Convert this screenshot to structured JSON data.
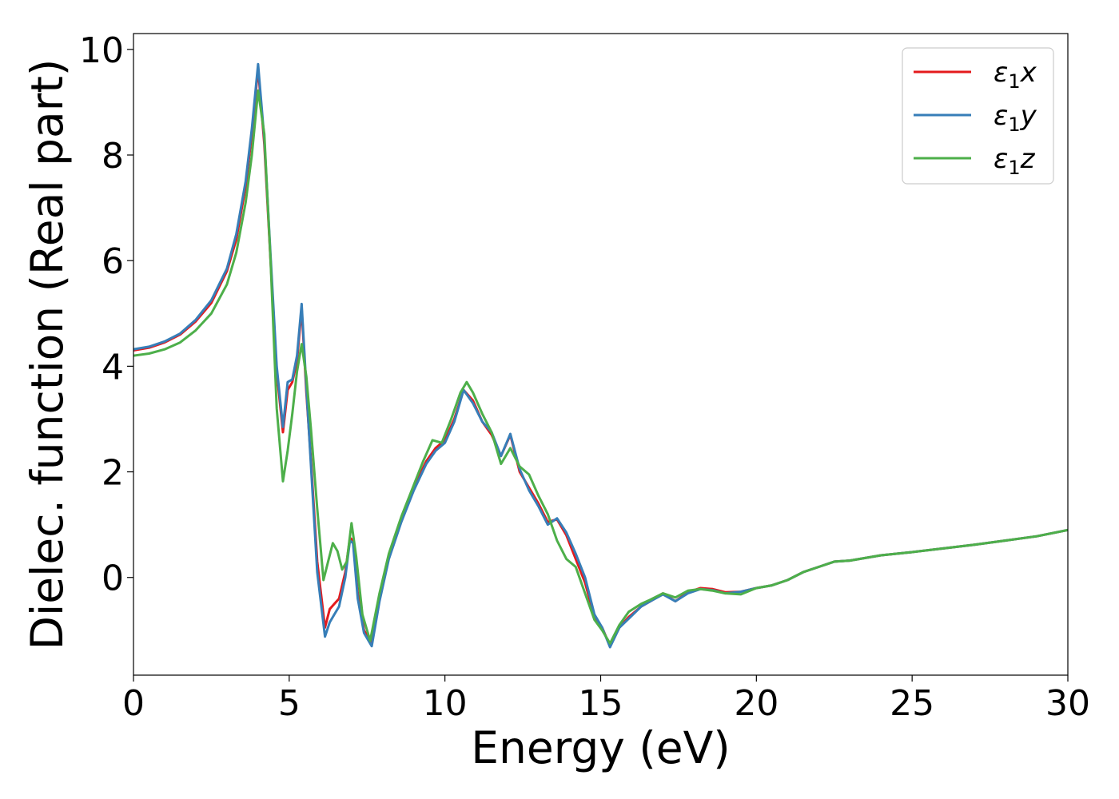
{
  "chart_data": {
    "type": "line",
    "xlabel": "Energy (eV)",
    "ylabel": "Dielec. function (Real part)",
    "xlim": [
      0,
      30
    ],
    "ylim": [
      -1.85,
      10.3
    ],
    "xticks": [
      0,
      5,
      10,
      15,
      20,
      25,
      30
    ],
    "yticks": [
      0,
      2,
      4,
      6,
      8,
      10
    ],
    "grid": false,
    "legend_position": "top-right",
    "series": [
      {
        "name": "ε₁x",
        "legend_base": "ε",
        "legend_sub": "1",
        "legend_var": "x",
        "color": "#e41a1c",
        "x": [
          0,
          0.5,
          1,
          1.5,
          2,
          2.5,
          3,
          3.3,
          3.6,
          3.8,
          4.0,
          4.2,
          4.4,
          4.6,
          4.8,
          4.95,
          5.1,
          5.25,
          5.4,
          5.55,
          5.7,
          5.9,
          6.15,
          6.3,
          6.45,
          6.6,
          6.8,
          6.95,
          7.05,
          7.2,
          7.4,
          7.65,
          7.9,
          8.2,
          8.6,
          9.0,
          9.4,
          9.7,
          10.0,
          10.3,
          10.6,
          10.9,
          11.2,
          11.5,
          11.8,
          12.1,
          12.4,
          12.7,
          13.0,
          13.3,
          13.6,
          13.9,
          14.2,
          14.5,
          14.8,
          15.05,
          15.3,
          15.6,
          15.9,
          16.3,
          16.6,
          17.0,
          17.4,
          17.8,
          18.2,
          18.6,
          19.0,
          19.5,
          20.0,
          20.5,
          21.0,
          21.5,
          22.0,
          22.5,
          23.0,
          24.0,
          25.0,
          26.0,
          27.0,
          28.0,
          29.0,
          30.0
        ],
        "y": [
          4.3,
          4.35,
          4.45,
          4.6,
          4.85,
          5.2,
          5.8,
          6.4,
          7.4,
          8.4,
          9.65,
          8.2,
          6.0,
          3.9,
          2.75,
          3.55,
          3.7,
          4.1,
          5.1,
          3.5,
          2.2,
          0.3,
          -0.95,
          -0.6,
          -0.5,
          -0.4,
          0.1,
          0.75,
          0.7,
          -0.3,
          -1.0,
          -1.25,
          -0.4,
          0.4,
          1.1,
          1.7,
          2.2,
          2.45,
          2.6,
          3.0,
          3.55,
          3.35,
          2.95,
          2.7,
          2.3,
          2.7,
          2.0,
          1.7,
          1.4,
          1.05,
          1.1,
          0.8,
          0.35,
          -0.1,
          -0.75,
          -0.95,
          -1.3,
          -0.95,
          -0.75,
          -0.55,
          -0.45,
          -0.3,
          -0.45,
          -0.28,
          -0.2,
          -0.22,
          -0.28,
          -0.27,
          -0.2,
          -0.15,
          -0.05,
          0.1,
          0.2,
          0.3,
          0.32,
          0.42,
          0.48,
          0.55,
          0.62,
          0.7,
          0.78,
          0.9
        ]
      },
      {
        "name": "ε₁y",
        "legend_base": "ε",
        "legend_sub": "1",
        "legend_var": "y",
        "color": "#377eb8",
        "x": [
          0,
          0.5,
          1,
          1.5,
          2,
          2.5,
          3,
          3.3,
          3.6,
          3.8,
          4.0,
          4.2,
          4.4,
          4.6,
          4.8,
          4.95,
          5.1,
          5.25,
          5.4,
          5.55,
          5.7,
          5.9,
          6.15,
          6.3,
          6.45,
          6.6,
          6.8,
          6.95,
          7.05,
          7.2,
          7.4,
          7.65,
          7.9,
          8.2,
          8.6,
          9.0,
          9.4,
          9.7,
          10.0,
          10.3,
          10.6,
          10.9,
          11.2,
          11.5,
          11.8,
          12.1,
          12.4,
          12.7,
          13.0,
          13.3,
          13.6,
          13.9,
          14.2,
          14.5,
          14.8,
          15.05,
          15.3,
          15.6,
          15.9,
          16.3,
          16.6,
          17.0,
          17.4,
          17.8,
          18.2,
          18.6,
          19.0,
          19.5,
          20.0,
          20.5,
          21.0,
          21.5,
          22.0,
          22.5,
          23.0,
          24.0,
          25.0,
          26.0,
          27.0,
          28.0,
          29.0,
          30.0
        ],
        "y": [
          4.32,
          4.37,
          4.47,
          4.62,
          4.88,
          5.25,
          5.85,
          6.5,
          7.5,
          8.5,
          9.72,
          8.3,
          6.1,
          4.0,
          2.85,
          3.7,
          3.75,
          4.2,
          5.18,
          3.6,
          2.1,
          0.1,
          -1.12,
          -0.85,
          -0.7,
          -0.55,
          0.0,
          0.7,
          0.65,
          -0.4,
          -1.05,
          -1.3,
          -0.45,
          0.35,
          1.05,
          1.65,
          2.15,
          2.4,
          2.55,
          2.95,
          3.55,
          3.3,
          2.95,
          2.75,
          2.3,
          2.72,
          2.05,
          1.65,
          1.35,
          1.0,
          1.12,
          0.85,
          0.45,
          0.0,
          -0.7,
          -0.95,
          -1.32,
          -0.95,
          -0.78,
          -0.55,
          -0.45,
          -0.32,
          -0.45,
          -0.3,
          -0.22,
          -0.24,
          -0.3,
          -0.27,
          -0.2,
          -0.15,
          -0.05,
          0.1,
          0.2,
          0.3,
          0.32,
          0.42,
          0.48,
          0.55,
          0.62,
          0.7,
          0.78,
          0.9
        ]
      },
      {
        "name": "ε₁z",
        "legend_base": "ε",
        "legend_sub": "1",
        "legend_var": "z",
        "color": "#4daf4a",
        "x": [
          0,
          0.5,
          1,
          1.5,
          2,
          2.5,
          3,
          3.3,
          3.6,
          3.8,
          4.0,
          4.2,
          4.4,
          4.6,
          4.8,
          4.95,
          5.1,
          5.25,
          5.4,
          5.55,
          5.7,
          5.9,
          6.1,
          6.25,
          6.4,
          6.55,
          6.7,
          6.85,
          7.0,
          7.15,
          7.35,
          7.6,
          7.9,
          8.2,
          8.6,
          9.0,
          9.3,
          9.6,
          9.9,
          10.2,
          10.5,
          10.7,
          10.9,
          11.2,
          11.5,
          11.8,
          12.1,
          12.4,
          12.7,
          13.0,
          13.3,
          13.6,
          13.9,
          14.2,
          14.5,
          14.8,
          15.05,
          15.3,
          15.6,
          15.9,
          16.3,
          16.6,
          17.0,
          17.4,
          17.8,
          18.2,
          18.6,
          19.0,
          19.5,
          20.0,
          20.5,
          21.0,
          21.5,
          22.0,
          22.5,
          23.0,
          24.0,
          25.0,
          26.0,
          27.0,
          28.0,
          29.0,
          30.0
        ],
        "y": [
          4.2,
          4.24,
          4.32,
          4.45,
          4.68,
          5.0,
          5.55,
          6.15,
          7.1,
          8.0,
          9.22,
          8.4,
          6.0,
          3.2,
          1.82,
          2.4,
          3.1,
          3.9,
          4.42,
          3.8,
          2.8,
          1.3,
          -0.05,
          0.3,
          0.65,
          0.5,
          0.15,
          0.3,
          1.03,
          0.4,
          -0.7,
          -1.2,
          -0.3,
          0.45,
          1.15,
          1.75,
          2.2,
          2.6,
          2.55,
          3.0,
          3.5,
          3.7,
          3.5,
          3.1,
          2.75,
          2.15,
          2.45,
          2.1,
          1.95,
          1.55,
          1.2,
          0.7,
          0.35,
          0.2,
          -0.3,
          -0.8,
          -1.0,
          -1.25,
          -0.9,
          -0.65,
          -0.5,
          -0.42,
          -0.3,
          -0.38,
          -0.25,
          -0.22,
          -0.25,
          -0.3,
          -0.32,
          -0.2,
          -0.15,
          -0.05,
          0.1,
          0.2,
          0.3,
          0.32,
          0.42,
          0.48,
          0.55,
          0.62,
          0.7,
          0.78,
          0.9
        ]
      }
    ]
  }
}
